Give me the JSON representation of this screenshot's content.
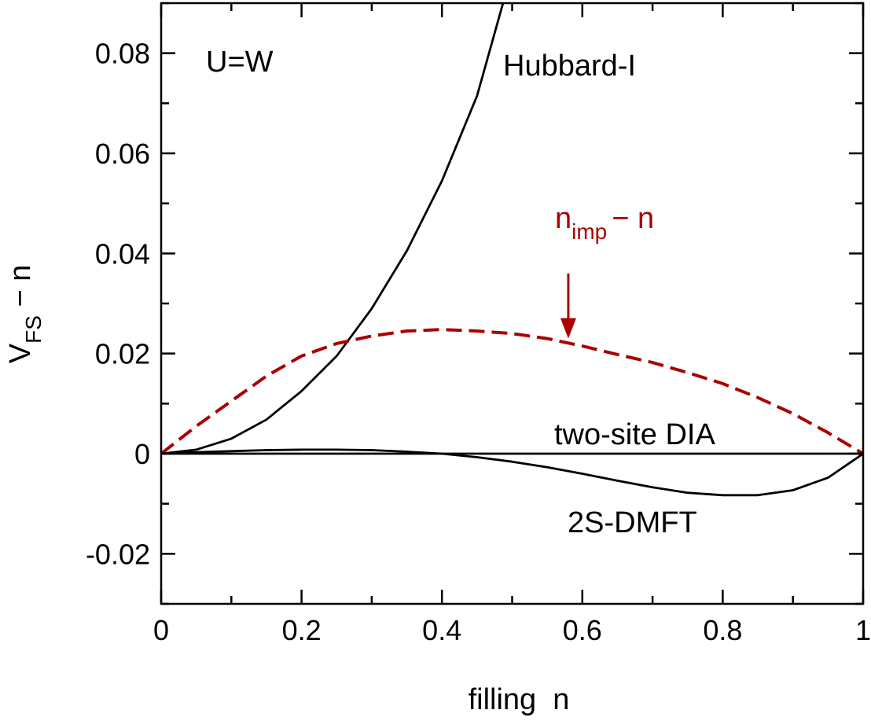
{
  "chart_data": {
    "type": "line",
    "title": "",
    "xlabel": "filling  n",
    "ylabel": {
      "main": "V",
      "sub": "FS",
      "tail": " − n"
    },
    "xlim": [
      0,
      1
    ],
    "ylim": [
      -0.03,
      0.09
    ],
    "xticks": [
      0,
      0.2,
      0.4,
      0.6,
      0.8,
      1
    ],
    "xtick_labels": [
      "0",
      "0.2",
      "0.4",
      "0.6",
      "0.8",
      "1"
    ],
    "yticks": [
      -0.02,
      0,
      0.02,
      0.04,
      0.06,
      0.08
    ],
    "ytick_labels": [
      "-0.02",
      "0",
      "0.02",
      "0.04",
      "0.06",
      "0.08"
    ],
    "grid": false,
    "legend": "none",
    "series": [
      {
        "label": "Hubbard-I",
        "color": "#000000",
        "style": "solid",
        "x": [
          0,
          0.05,
          0.1,
          0.15,
          0.2,
          0.25,
          0.3,
          0.35,
          0.4,
          0.45,
          0.487
        ],
        "y": [
          0,
          0.0008,
          0.003,
          0.0068,
          0.0125,
          0.0195,
          0.029,
          0.0405,
          0.0545,
          0.0715,
          0.09
        ]
      },
      {
        "label": "n_imp − n",
        "color": "#aa0000",
        "style": "dashed",
        "x": [
          0,
          0.05,
          0.1,
          0.15,
          0.2,
          0.25,
          0.3,
          0.35,
          0.4,
          0.45,
          0.5,
          0.55,
          0.6,
          0.65,
          0.7,
          0.75,
          0.8,
          0.85,
          0.9,
          0.95,
          1.0
        ],
        "y": [
          0,
          0.0055,
          0.0105,
          0.0155,
          0.0195,
          0.022,
          0.0235,
          0.0245,
          0.0248,
          0.0245,
          0.024,
          0.023,
          0.0215,
          0.0198,
          0.0182,
          0.0162,
          0.014,
          0.0112,
          0.008,
          0.0042,
          0
        ]
      },
      {
        "label": "two-site DIA",
        "color": "#000000",
        "style": "solid",
        "x": [
          0,
          1
        ],
        "y": [
          0,
          0
        ]
      },
      {
        "label": "2S-DMFT",
        "color": "#000000",
        "style": "solid",
        "x": [
          0,
          0.05,
          0.1,
          0.15,
          0.2,
          0.25,
          0.3,
          0.35,
          0.4,
          0.45,
          0.5,
          0.55,
          0.6,
          0.65,
          0.7,
          0.75,
          0.8,
          0.85,
          0.9,
          0.95,
          1.0
        ],
        "y": [
          0,
          0.0003,
          0.0005,
          0.0007,
          0.0008,
          0.0008,
          0.0007,
          0.0004,
          0,
          -0.0007,
          -0.0016,
          -0.0027,
          -0.004,
          -0.0054,
          -0.0067,
          -0.0078,
          -0.0083,
          -0.0083,
          -0.0073,
          -0.0048,
          0
        ]
      }
    ],
    "annotations": {
      "panel": "U=W",
      "hubbard": "Hubbard-I",
      "dia": "two-site DIA",
      "dmft": "2S-DMFT",
      "nimp": {
        "main": "n",
        "sub": "imp",
        "tail": "− n"
      }
    },
    "arrow": {
      "x": 0.58,
      "y_from": 0.036,
      "y_to": 0.023,
      "color": "#aa0000"
    }
  }
}
